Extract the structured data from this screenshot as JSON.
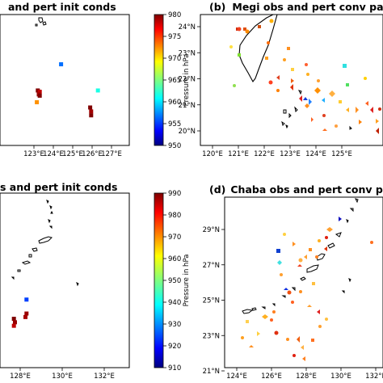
{
  "chart_data": [
    {
      "type": "scatter",
      "panel": "(a)",
      "title": "and pert init conds",
      "xlabel": "",
      "ylabel": "",
      "x_ticks": [
        "123°E",
        "124°E",
        "125°E",
        "126°E",
        "127°E"
      ],
      "x_tick_values": [
        123,
        124,
        125,
        126,
        127
      ],
      "y_ticks": [],
      "colorbar": {
        "label": "Pressure in hPa",
        "min": 950,
        "max": 980,
        "ticks": [
          950,
          955,
          960,
          965,
          970,
          975,
          980
        ]
      },
      "points": [
        {
          "lon": 124.4,
          "lat": 0.62,
          "value": 957
        },
        {
          "lon": 123.2,
          "lat": 0.42,
          "value": 980
        },
        {
          "lon": 123.3,
          "lat": 0.41,
          "value": 978
        },
        {
          "lon": 123.25,
          "lat": 0.39,
          "value": 979
        },
        {
          "lon": 123.3,
          "lat": 0.38,
          "value": 980
        },
        {
          "lon": 123.15,
          "lat": 0.33,
          "value": 972
        },
        {
          "lon": 126.3,
          "lat": 0.42,
          "value": 962
        },
        {
          "lon": 125.9,
          "lat": 0.29,
          "value": 980
        },
        {
          "lon": 125.95,
          "lat": 0.26,
          "value": 979
        },
        {
          "lon": 125.95,
          "lat": 0.23,
          "value": 980
        }
      ]
    },
    {
      "type": "scatter",
      "panel": "(b)",
      "title": "Megi obs and pert conv pa",
      "xlabel": "",
      "ylabel": "",
      "x_ticks": [
        "120°E",
        "121°E",
        "122°E",
        "123°E",
        "124°E",
        "125°E"
      ],
      "x_tick_values": [
        120,
        121,
        122,
        123,
        124,
        125
      ],
      "y_ticks": [
        "20°N",
        "21°N",
        "22°N",
        "23°N",
        "24°N"
      ],
      "y_tick_values": [
        20,
        21,
        22,
        23,
        24
      ]
    },
    {
      "type": "scatter",
      "panel": "",
      "title": "s and pert init conds",
      "xlabel": "",
      "ylabel": "",
      "x_ticks": [
        "128°E",
        "130°E",
        "132°E",
        "134°E"
      ],
      "x_tick_values": [
        128,
        130,
        132,
        134
      ],
      "y_ticks": [],
      "colorbar": {
        "label": "Pressure in hPa",
        "min": 910,
        "max": 990,
        "ticks": [
          910,
          920,
          930,
          940,
          950,
          960,
          970,
          980,
          990
        ]
      },
      "points": [
        {
          "lon": 128.3,
          "lat": 0.39,
          "value": 925
        },
        {
          "lon": 128.3,
          "lat": 0.31,
          "value": 988
        },
        {
          "lon": 128.25,
          "lat": 0.29,
          "value": 987
        },
        {
          "lon": 127.7,
          "lat": 0.28,
          "value": 990
        },
        {
          "lon": 127.75,
          "lat": 0.26,
          "value": 988
        },
        {
          "lon": 127.7,
          "lat": 0.24,
          "value": 985
        }
      ]
    },
    {
      "type": "scatter",
      "panel": "(d)",
      "title": "Chaba obs and pert conv pa",
      "xlabel": "",
      "ylabel": "",
      "x_ticks": [
        "124°E",
        "126°E",
        "128°E",
        "130°E",
        "132°E"
      ],
      "x_tick_values": [
        124,
        126,
        128,
        130,
        132
      ],
      "y_ticks": [
        "21°N",
        "23°N",
        "25°N",
        "27°N",
        "29°N"
      ],
      "y_tick_values": [
        21,
        23,
        25,
        27,
        29
      ]
    }
  ],
  "colors": {
    "frame": "#000000",
    "background": "#ffffff"
  }
}
